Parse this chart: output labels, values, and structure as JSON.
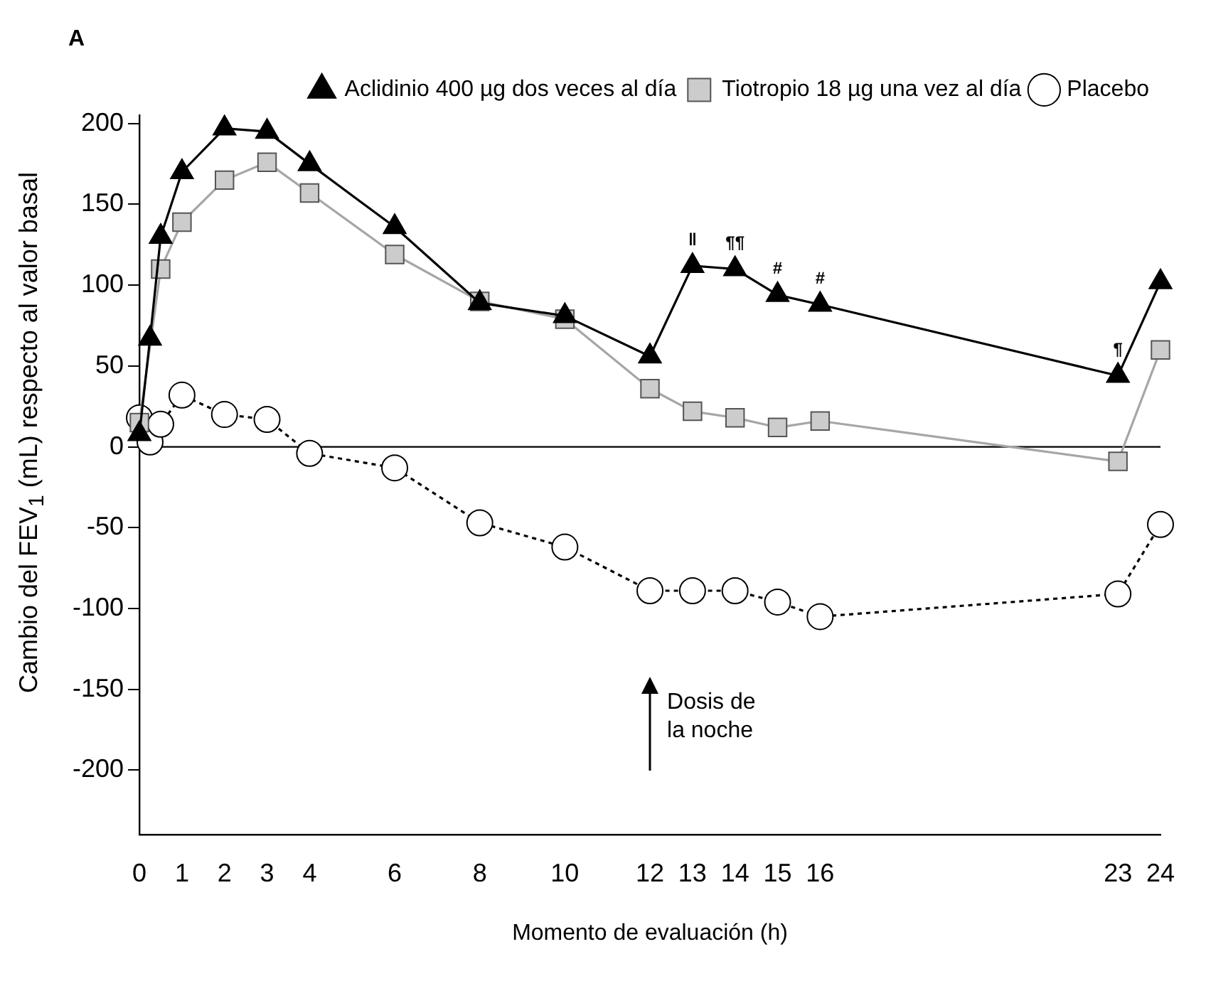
{
  "chart_data": {
    "type": "line",
    "title": "A",
    "xlabel": "Momento de evaluación (h)",
    "ylabel": "Cambio del FEV$_{1}$ (mL) respecto al valor basal",
    "x": [
      0,
      0.25,
      0.5,
      1,
      2,
      3,
      4,
      6,
      8,
      10,
      12,
      13,
      14,
      15,
      16,
      23,
      24
    ],
    "series": [
      {
        "name": "Aclidinio 400 µg dos veces al día",
        "color": "#000000",
        "marker": "triangle",
        "line_style": "solid",
        "values": [
          8,
          67,
          130,
          170,
          197,
          195,
          175,
          136,
          89,
          81,
          56,
          112,
          110,
          94,
          88,
          44,
          102
        ]
      },
      {
        "name": "Tiotropio 18 µg una vez al día",
        "color": "#a6a6a6",
        "marker": "square",
        "line_style": "solid",
        "values": [
          15,
          null,
          110,
          139,
          165,
          176,
          157,
          119,
          90,
          79,
          36,
          22,
          18,
          12,
          16,
          -9,
          60
        ]
      },
      {
        "name": "Placebo",
        "color": "#000000",
        "marker": "circle",
        "line_style": "dotted",
        "values": [
          18,
          3,
          14,
          32,
          20,
          17,
          -4,
          -13,
          -47,
          -62,
          -89,
          -89,
          -89,
          -96,
          -105,
          -91,
          -48
        ]
      }
    ],
    "xlim": [
      0,
      24
    ],
    "xticks": [
      0,
      1,
      2,
      3,
      4,
      6,
      8,
      10,
      12,
      13,
      14,
      15,
      16,
      23,
      24
    ],
    "ylim": [
      -240,
      205
    ],
    "yticks": [
      -200,
      -150,
      -100,
      -50,
      0,
      50,
      100,
      150,
      200
    ],
    "ref_lines": [
      {
        "axis": "y",
        "value": 0
      }
    ],
    "annotations": [
      "Dosis de la noche",
      {
        "text": "‖",
        "x": 13,
        "y": 112
      },
      {
        "text": "¶¶",
        "x": 14,
        "y": 110
      },
      {
        "text": "#",
        "x": 15,
        "y": 94
      },
      {
        "text": "#",
        "x": 16,
        "y": 88
      },
      {
        "text": "¶",
        "x": 23,
        "y": 44
      }
    ],
    "grid": false,
    "legend": "top right"
  }
}
